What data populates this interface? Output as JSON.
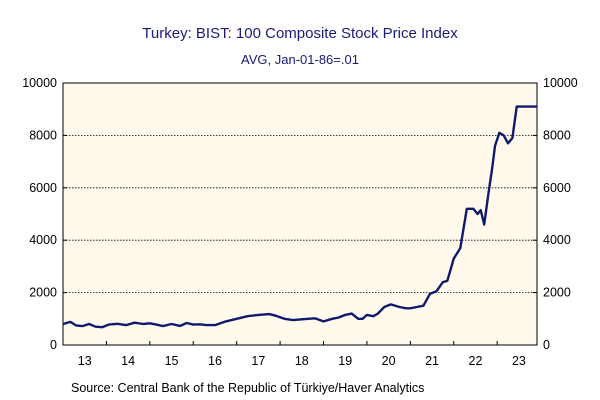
{
  "chart_data": {
    "type": "line",
    "title": "Turkey: BIST: 100 Composite Stock Price Index",
    "subtitle": "AVG, Jan-01-86=.01",
    "source": "Source:  Central Bank of the Republic of Türkiye/Haver Analytics",
    "ylim": [
      0,
      10000
    ],
    "yticks": [
      0,
      2000,
      4000,
      6000,
      8000,
      10000
    ],
    "ytick_labels": [
      "0",
      "2000",
      "4000",
      "6000",
      "8000",
      "10000"
    ],
    "xlim": [
      2013.0,
      2023.917
    ],
    "xticks": [
      {
        "label": "13",
        "pos": 2013.5
      },
      {
        "label": "14",
        "pos": 2014.5
      },
      {
        "label": "15",
        "pos": 2015.5
      },
      {
        "label": "16",
        "pos": 2016.5
      },
      {
        "label": "17",
        "pos": 2017.5
      },
      {
        "label": "18",
        "pos": 2018.5
      },
      {
        "label": "19",
        "pos": 2019.5
      },
      {
        "label": "20",
        "pos": 2020.5
      },
      {
        "label": "21",
        "pos": 2021.5
      },
      {
        "label": "22",
        "pos": 2022.5
      },
      {
        "label": "23",
        "pos": 2023.5
      }
    ],
    "grid": true,
    "colors": {
      "plot_bg": "#fffaeb",
      "line": "#0f1a6e",
      "title": "#1a1a7a"
    },
    "series": [
      {
        "x": [
          2013.0,
          2013.17,
          2013.3,
          2013.45,
          2013.6,
          2013.75,
          2013.9,
          2014.05,
          2014.25,
          2014.45,
          2014.65,
          2014.85,
          2015.0,
          2015.15,
          2015.3,
          2015.5,
          2015.7,
          2015.85,
          2016.0,
          2016.15,
          2016.3,
          2016.5,
          2016.75,
          2017.0,
          2017.25,
          2017.5,
          2017.75,
          2017.9,
          2018.1,
          2018.3,
          2018.5,
          2018.65,
          2018.8,
          2019.0,
          2019.2,
          2019.35,
          2019.5,
          2019.65,
          2019.8,
          2019.9,
          2020.0,
          2020.15,
          2020.25,
          2020.4,
          2020.55,
          2020.75,
          2020.9,
          2021.0,
          2021.15,
          2021.3,
          2021.45,
          2021.6,
          2021.75,
          2021.85,
          2022.0,
          2022.15,
          2022.3,
          2022.45,
          2022.55,
          2022.62,
          2022.7,
          2022.8,
          2022.88,
          2022.95,
          2023.05,
          2023.15,
          2023.25,
          2023.35,
          2023.45,
          2023.55,
          2023.65,
          2023.75,
          2023.85,
          2023.917
        ],
        "y": [
          800,
          880,
          750,
          720,
          800,
          700,
          680,
          780,
          810,
          760,
          850,
          800,
          830,
          780,
          720,
          800,
          730,
          840,
          780,
          790,
          760,
          760,
          900,
          1000,
          1100,
          1150,
          1180,
          1120,
          1000,
          950,
          980,
          1000,
          1020,
          900,
          1000,
          1050,
          1150,
          1200,
          1000,
          1000,
          1150,
          1100,
          1200,
          1450,
          1550,
          1450,
          1400,
          1400,
          1450,
          1500,
          1950,
          2050,
          2400,
          2450,
          3300,
          3700,
          5200,
          5200,
          5000,
          5150,
          4600,
          5800,
          6700,
          7600,
          8100,
          8000,
          7700,
          7900,
          9100,
          9100,
          9100,
          9100,
          9100,
          9100
        ]
      }
    ]
  }
}
